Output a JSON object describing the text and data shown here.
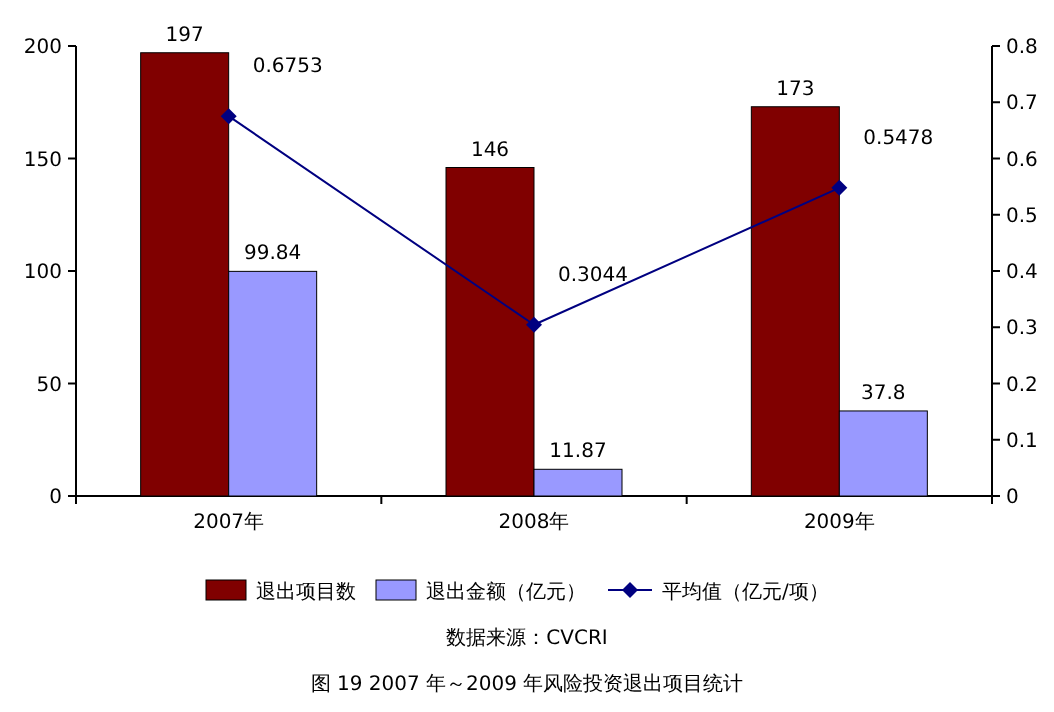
{
  "chart_data": {
    "type": "bar",
    "title": "图 19  2007 年～2009 年风险投资退出项目统计",
    "annotations": [
      "数据来源：CVCRI"
    ],
    "categories": [
      "2007年",
      "2008年",
      "2009年"
    ],
    "series": [
      {
        "name": "退出项目数",
        "color": "#800000",
        "values": [
          197,
          146,
          173
        ]
      },
      {
        "name": "退出金额（亿元）",
        "color": "#9999ff",
        "values": [
          99.84,
          11.87,
          37.8
        ]
      },
      {
        "name": "平均值（亿元/项）",
        "type": "line",
        "axis": "y2",
        "color": "#000080",
        "values": [
          0.6753,
          0.3044,
          0.5478
        ]
      }
    ],
    "ylim": [
      0,
      200
    ],
    "yticks": [
      0,
      50,
      100,
      150,
      200
    ],
    "y2lim": [
      0,
      0.8
    ],
    "y2ticks": [
      0,
      0.1,
      0.2,
      0.3,
      0.4,
      0.5,
      0.6,
      0.7,
      0.8
    ],
    "data_labels": true,
    "legend": "bottom",
    "marker": "diamond",
    "line_style": "solid",
    "grid": false
  }
}
